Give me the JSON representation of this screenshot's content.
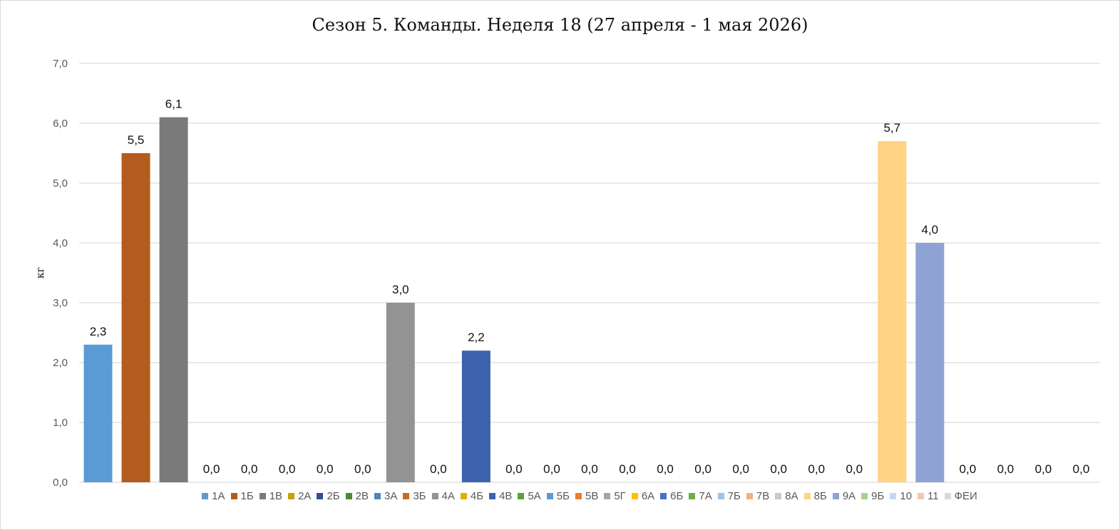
{
  "chart_data": {
    "type": "bar",
    "title": "Сезон 5. Команды. Неделя 18 (27 апреля - 1 мая 2026)",
    "xlabel": "",
    "ylabel": "кг",
    "ylim": [
      0,
      7
    ],
    "ytick_labels": [
      "0,0",
      "1,0",
      "2,0",
      "3,0",
      "4,0",
      "5,0",
      "6,0",
      "7,0"
    ],
    "grid": true,
    "legend_position": "bottom",
    "categories": [
      "1А",
      "1Б",
      "1В",
      "2А",
      "2Б",
      "2В",
      "3А",
      "3Б",
      "4А",
      "4Б",
      "4В",
      "5А",
      "5Б",
      "5В",
      "5Г",
      "6А",
      "6Б",
      "7А",
      "7Б",
      "7В",
      "8А",
      "8Б",
      "9А",
      "9Б",
      "10",
      "11",
      "ФЕИ"
    ],
    "values": [
      2.3,
      5.5,
      6.1,
      0,
      0,
      0,
      0,
      0,
      3.0,
      0,
      2.2,
      0,
      0,
      0,
      0,
      0,
      0,
      0,
      0,
      0,
      0,
      5.7,
      4.0,
      0,
      0,
      0,
      0
    ],
    "data_labels": [
      "2,3",
      "5,5",
      "6,1",
      "0,0",
      "0,0",
      "0,0",
      "0,0",
      "0,0",
      "3,0",
      "0,0",
      "2,2",
      "0,0",
      "0,0",
      "0,0",
      "0,0",
      "0,0",
      "0,0",
      "0,0",
      "0,0",
      "0,0",
      "0,0",
      "5,7",
      "4,0",
      "0,0",
      "0,0",
      "0,0",
      "0,0"
    ],
    "colors": [
      "#5b9bd5",
      "#b35c1e",
      "#7a7a7a",
      "#c9a000",
      "#2f4f8f",
      "#4e8a30",
      "#4a86c0",
      "#c96a26",
      "#939393",
      "#e0b000",
      "#3c62ad",
      "#5aa13a",
      "#5b9bd5",
      "#ed7d31",
      "#a5a5a5",
      "#ffc000",
      "#4472c4",
      "#70ad47",
      "#9dc3e6",
      "#f4b183",
      "#c9c9c9",
      "#ffd382",
      "#8fa2d4",
      "#a9d18e",
      "#c5d8f0",
      "#f5c6b8",
      "#d9d9d9"
    ]
  }
}
